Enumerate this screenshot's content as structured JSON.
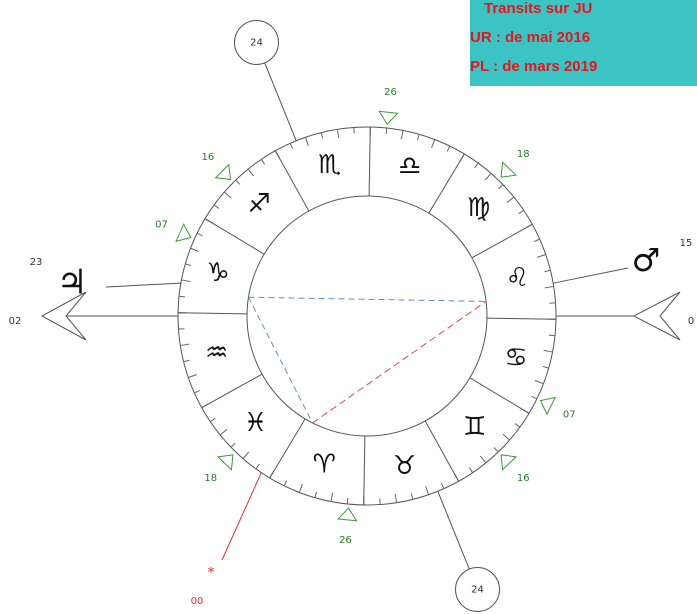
{
  "legend": {
    "lines": [
      "Transits sur JU",
      "UR : de mai 2016",
      "PL : de mars 2019"
    ]
  },
  "signs": [
    "♌",
    "♍",
    "♎",
    "♏",
    "♐",
    "♑",
    "♒",
    "♓",
    "♈",
    "♉",
    "♊",
    "♋"
  ],
  "axis": {
    "left": "02",
    "right": "0"
  },
  "houses": {
    "top": "24",
    "bottom": "24"
  },
  "planets": {
    "jupiter": {
      "glyph": "♃",
      "degree": "23"
    },
    "mars": {
      "glyph": "♂",
      "degree": "15"
    }
  },
  "point": {
    "glyph": "*",
    "degree": "00"
  },
  "markers": [
    "26",
    "18",
    "16",
    "07",
    "07",
    "16",
    "18",
    "26"
  ]
}
